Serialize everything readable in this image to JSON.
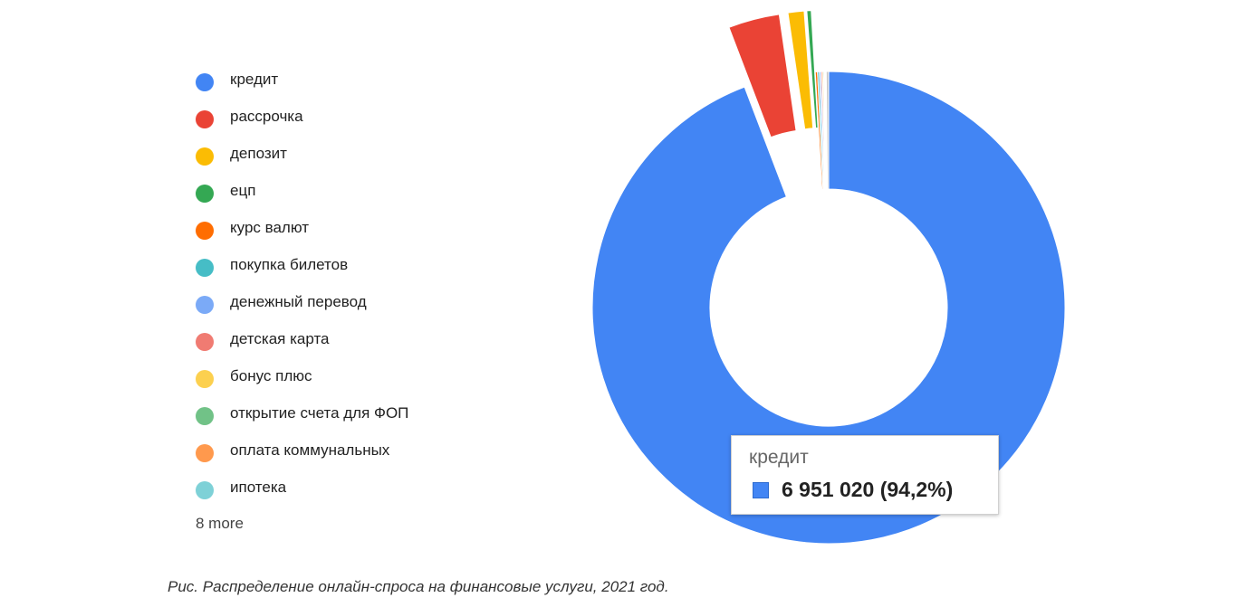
{
  "chart_data": {
    "type": "pie",
    "series": [
      {
        "label": "кредит",
        "value": 6951020,
        "percent": 94.2,
        "color": "#4285f4"
      },
      {
        "label": "рассрочка",
        "value": 258000,
        "percent": 3.5,
        "color": "#ea4335"
      },
      {
        "label": "депозит",
        "value": 81000,
        "percent": 1.1,
        "color": "#fbbc04"
      },
      {
        "label": "ецп",
        "value": 22000,
        "percent": 0.3,
        "color": "#34a853"
      },
      {
        "label": "курс валют",
        "value": 11000,
        "percent": 0.15,
        "color": "#ff6d01"
      },
      {
        "label": "покупка билетов",
        "value": 9000,
        "percent": 0.12,
        "color": "#46bdc6"
      },
      {
        "label": "денежный перевод",
        "value": 8000,
        "percent": 0.11,
        "color": "#7baaf7"
      },
      {
        "label": "детская карта",
        "value": 7000,
        "percent": 0.1,
        "color": "#f07b72"
      },
      {
        "label": "бонус плюс",
        "value": 6000,
        "percent": 0.08,
        "color": "#fcd04f"
      },
      {
        "label": "открытие счета для ФОП",
        "value": 5000,
        "percent": 0.07,
        "color": "#71c287"
      },
      {
        "label": "оплата коммунальных",
        "value": 4500,
        "percent": 0.06,
        "color": "#ff994d"
      },
      {
        "label": "ипотека",
        "value": 4000,
        "percent": 0.05,
        "color": "#7ed1d7"
      }
    ],
    "others_value": 12000,
    "others_color": "#c7c7c7",
    "legend_more": "8 more",
    "legend_position": "left",
    "donut": true,
    "exploded": [
      "рассрочка",
      "депозит",
      "ецп"
    ],
    "tooltip": {
      "title": "кредит",
      "value_text": "6 951 020 (94,2%)",
      "color": "#4285f4"
    }
  },
  "caption": "Рис. Распределение онлайн-спроса на финансовые услуги, 2021 год."
}
